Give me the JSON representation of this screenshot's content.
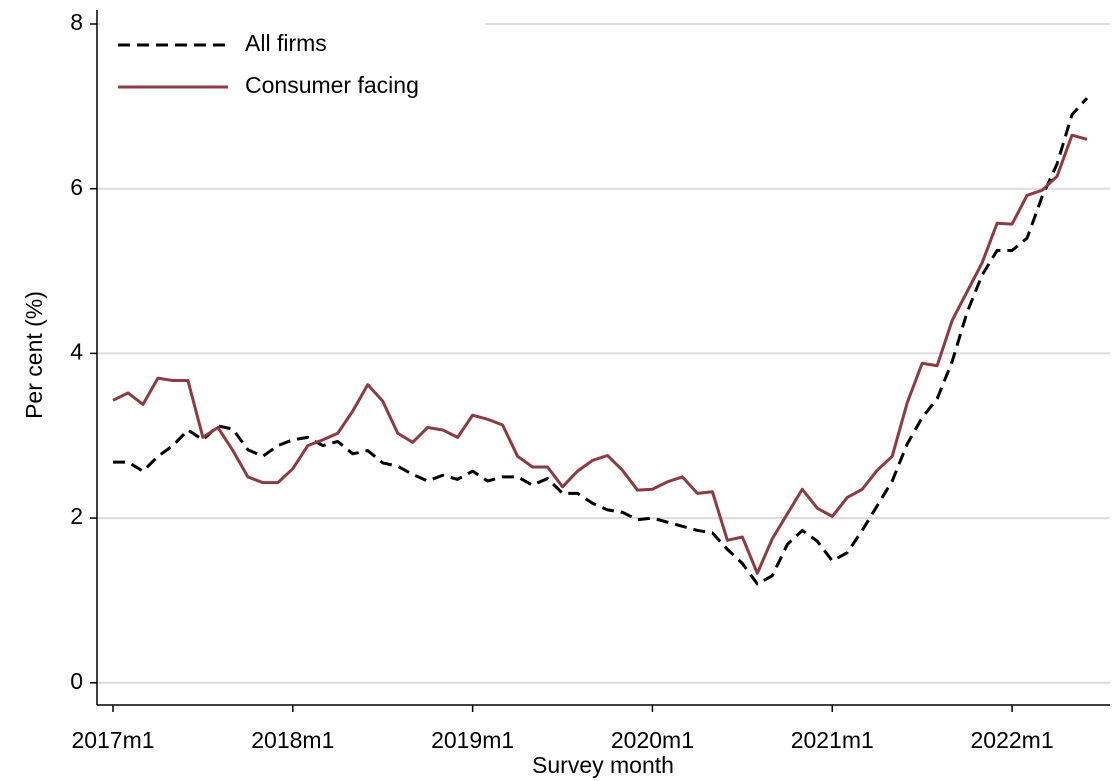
{
  "chart_data": {
    "type": "line",
    "xlabel": "Survey month",
    "ylabel": "Per cent (%)",
    "categories": [
      "2017m1",
      null,
      null,
      null,
      null,
      null,
      null,
      null,
      null,
      null,
      null,
      null,
      "2018m1",
      null,
      null,
      null,
      null,
      null,
      null,
      null,
      null,
      null,
      null,
      null,
      "2019m1",
      null,
      null,
      null,
      null,
      null,
      null,
      null,
      null,
      null,
      null,
      null,
      "2020m1",
      null,
      null,
      null,
      null,
      null,
      null,
      null,
      null,
      null,
      null,
      null,
      "2021m1",
      null,
      null,
      null,
      null,
      null,
      null,
      null,
      null,
      null,
      null,
      null,
      "2022m1",
      null,
      null,
      null,
      null,
      null
    ],
    "series": [
      {
        "name": "All firms",
        "color": "#000000",
        "dash": true,
        "values": [
          2.68,
          2.68,
          2.57,
          2.75,
          2.88,
          3.07,
          2.95,
          3.12,
          3.08,
          2.83,
          2.75,
          2.88,
          2.95,
          2.98,
          2.88,
          2.93,
          2.78,
          2.82,
          2.67,
          2.63,
          2.53,
          2.45,
          2.52,
          2.47,
          2.57,
          2.45,
          2.5,
          2.5,
          2.4,
          2.48,
          2.3,
          2.3,
          2.18,
          2.1,
          2.07,
          1.98,
          2.0,
          1.95,
          1.9,
          1.85,
          1.82,
          1.62,
          1.45,
          1.2,
          1.3,
          1.68,
          1.85,
          1.72,
          1.48,
          1.58,
          1.85,
          2.15,
          2.45,
          2.9,
          3.22,
          3.45,
          3.9,
          4.5,
          4.95,
          5.25,
          5.25,
          5.4,
          5.9,
          6.3,
          6.9,
          7.1
        ]
      },
      {
        "name": "Consumer facing",
        "color": "#8e3a40",
        "dash": false,
        "values": [
          3.43,
          3.52,
          3.38,
          3.7,
          3.67,
          3.67,
          2.98,
          3.1,
          2.82,
          2.5,
          2.43,
          2.43,
          2.6,
          2.88,
          2.95,
          3.03,
          3.3,
          3.62,
          3.42,
          3.03,
          2.92,
          3.1,
          3.07,
          2.98,
          3.25,
          3.2,
          3.13,
          2.75,
          2.62,
          2.62,
          2.38,
          2.57,
          2.7,
          2.76,
          2.58,
          2.34,
          2.35,
          2.44,
          2.5,
          2.3,
          2.32,
          1.73,
          1.77,
          1.33,
          1.75,
          2.05,
          2.35,
          2.12,
          2.02,
          2.25,
          2.35,
          2.58,
          2.75,
          3.4,
          3.88,
          3.85,
          4.4,
          4.75,
          5.1,
          5.58,
          5.57,
          5.92,
          5.98,
          6.15,
          6.65,
          6.6
        ]
      }
    ],
    "ylim": [
      -0.27,
      8.17
    ],
    "yticks": [
      0,
      2,
      4,
      6,
      8
    ],
    "grid": true,
    "legend": "upper left"
  }
}
